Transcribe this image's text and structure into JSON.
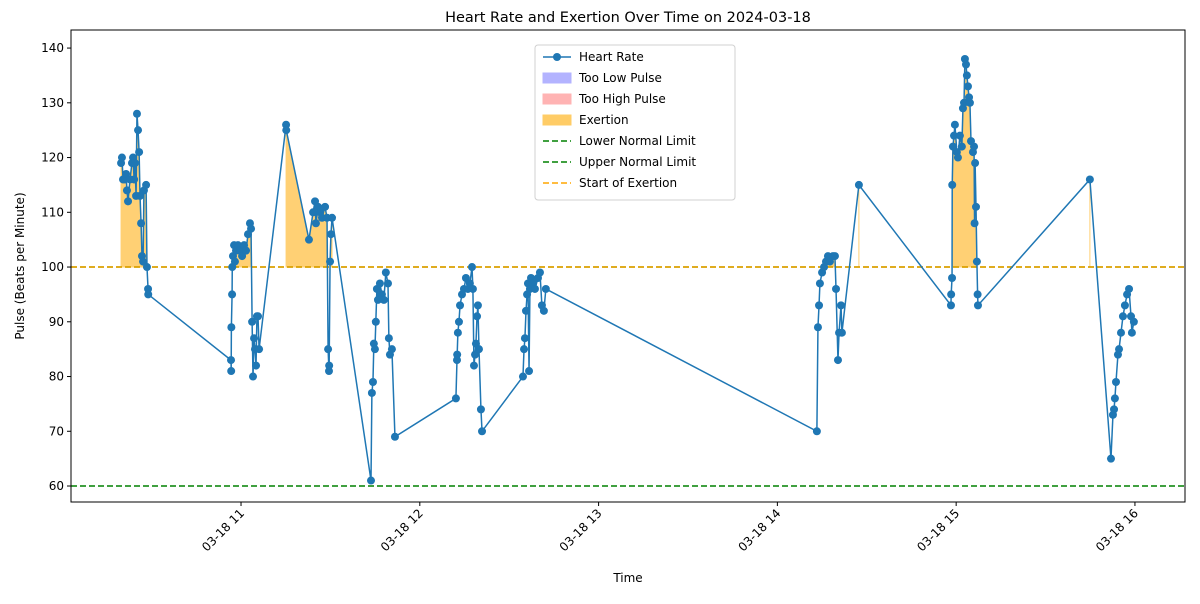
{
  "chart_data": {
    "type": "line",
    "title": "Heart Rate and Exertion Over Time on 2024-03-18",
    "x_label": "Time",
    "y_label": "Pulse (Beats per Minute)",
    "xlim": [
      10.049,
      16.28
    ],
    "ylim": [
      57.08,
      143.3
    ],
    "xticks": [
      {
        "value": 11,
        "label": "03-18 11"
      },
      {
        "value": 12,
        "label": "03-18 12"
      },
      {
        "value": 13,
        "label": "03-18 13"
      },
      {
        "value": 14,
        "label": "03-18 14"
      },
      {
        "value": 15,
        "label": "03-18 15"
      },
      {
        "value": 16,
        "label": "03-18 16"
      }
    ],
    "yticks": [
      60,
      70,
      80,
      90,
      100,
      110,
      120,
      130,
      140
    ],
    "legend": "upper center",
    "series": [
      {
        "name": "Heart Rate",
        "color": "#1f77b4",
        "x": [
          10.329,
          10.334,
          10.34,
          10.351,
          10.357,
          10.362,
          10.368,
          10.379,
          10.39,
          10.396,
          10.402,
          10.407,
          10.413,
          10.418,
          10.424,
          10.43,
          10.435,
          10.441,
          10.446,
          10.452,
          10.457,
          10.469,
          10.474,
          10.48,
          10.481,
          10.944,
          10.945,
          10.946,
          10.95,
          10.951,
          10.955,
          10.961,
          10.966,
          10.972,
          10.983,
          10.994,
          11.006,
          11.017,
          11.028,
          11.039,
          11.05,
          11.056,
          11.062,
          11.067,
          11.073,
          11.078,
          11.084,
          11.089,
          11.095,
          11.101,
          11.252,
          11.253,
          11.38,
          11.403,
          11.414,
          11.419,
          11.431,
          11.442,
          11.453,
          11.47,
          11.481,
          11.487,
          11.492,
          11.493,
          11.498,
          11.503,
          11.509,
          11.727,
          11.732,
          11.738,
          11.743,
          11.749,
          11.754,
          11.76,
          11.766,
          11.777,
          11.788,
          11.799,
          11.81,
          11.822,
          11.827,
          11.833,
          11.844,
          11.861,
          12.202,
          12.208,
          12.209,
          12.213,
          12.219,
          12.225,
          12.236,
          12.247,
          12.258,
          12.269,
          12.28,
          12.292,
          12.297,
          12.303,
          12.309,
          12.314,
          12.32,
          12.325,
          12.331,
          12.342,
          12.348,
          12.577,
          12.583,
          12.588,
          12.594,
          12.6,
          12.605,
          12.611,
          12.616,
          12.622,
          12.633,
          12.644,
          12.661,
          12.672,
          12.683,
          12.694,
          12.705,
          14.221,
          14.227,
          14.233,
          14.238,
          14.25,
          14.261,
          14.272,
          14.283,
          14.294,
          14.311,
          14.322,
          14.328,
          14.339,
          14.345,
          14.356,
          14.361,
          14.456,
          14.971,
          14.972,
          14.977,
          14.978,
          14.982,
          14.988,
          14.993,
          15.004,
          15.01,
          15.021,
          15.032,
          15.038,
          15.044,
          15.049,
          15.055,
          15.06,
          15.066,
          15.072,
          15.077,
          15.083,
          15.094,
          15.1,
          15.103,
          15.106,
          15.111,
          15.116,
          15.12,
          15.122,
          15.748,
          15.866,
          15.877,
          15.883,
          15.888,
          15.894,
          15.905,
          15.911,
          15.922,
          15.933,
          15.944,
          15.956,
          15.967,
          15.978,
          15.983,
          15.994
        ],
        "values": [
          119,
          120,
          116,
          116,
          117,
          114,
          112,
          116,
          119,
          120,
          116,
          119,
          113,
          128,
          125,
          121,
          113,
          108,
          102,
          101,
          114,
          115,
          100,
          96,
          95,
          83,
          81,
          89,
          95,
          100,
          102,
          104,
          101,
          103,
          104,
          103,
          102,
          104,
          103,
          106,
          108,
          107,
          90,
          80,
          87,
          85,
          82,
          91,
          91,
          85,
          126,
          125,
          105,
          110,
          112,
          108,
          111,
          110,
          109,
          111,
          109,
          85,
          81,
          82,
          101,
          106,
          109,
          61,
          77,
          79,
          86,
          85,
          90,
          96,
          94,
          97,
          95,
          94,
          99,
          97,
          87,
          84,
          85,
          69,
          76,
          83,
          84,
          88,
          90,
          93,
          95,
          96,
          98,
          96,
          97,
          100,
          96,
          82,
          84,
          86,
          91,
          93,
          85,
          74,
          70,
          80,
          85,
          87,
          92,
          95,
          97,
          81,
          96,
          98,
          97,
          96,
          98,
          99,
          93,
          92,
          96,
          70,
          89,
          93,
          97,
          99,
          100,
          101,
          102,
          101,
          102,
          102,
          96,
          83,
          88,
          93,
          88,
          115,
          93,
          95,
          98,
          115,
          122,
          124,
          126,
          121,
          120,
          124,
          122,
          129,
          130,
          138,
          137,
          135,
          133,
          131,
          130,
          123,
          121,
          122,
          108,
          119,
          111,
          101,
          95,
          93,
          116,
          65,
          73,
          74,
          76,
          79,
          84,
          85,
          88,
          91,
          93,
          95,
          96,
          91,
          88,
          90
        ]
      }
    ],
    "fills": [
      {
        "name": "Too Low Pulse",
        "color": "#b3b3ff"
      },
      {
        "name": "Too High Pulse",
        "color": "#ffb3b3"
      },
      {
        "name": "Exertion",
        "color": "#ffcc66"
      }
    ],
    "hlines": [
      {
        "name": "Lower Normal Limit",
        "value": 60,
        "color": "#008000"
      },
      {
        "name": "Upper Normal Limit",
        "value": 100,
        "color": "#008000"
      },
      {
        "name": "Start of Exertion",
        "value": 100,
        "color": "#ffa500"
      }
    ]
  }
}
